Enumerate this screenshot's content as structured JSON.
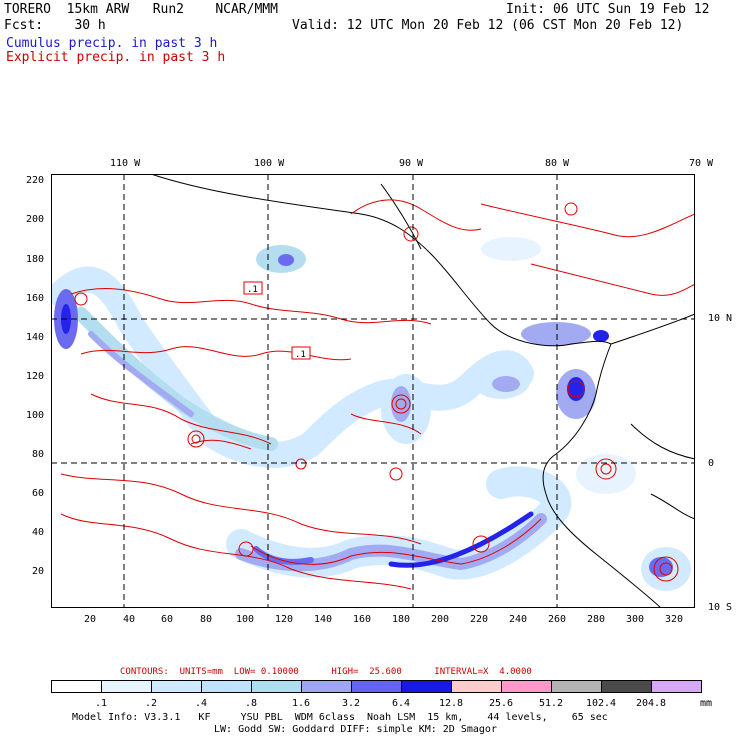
{
  "header": {
    "line1_left": "TORERO  15km ARW   Run2    NCAR/MMM",
    "line1_right": "Init: 06 UTC Sun 19 Feb 12",
    "line2_left": "Fcst:    30 h",
    "line2_right": "Valid: 12 UTC Mon 20 Feb 12 (06 CST Mon 20 Feb 12)",
    "line3": "Cumulus precip. in past 3 h",
    "line4": "Explicit precip. in past 3 h",
    "line3_color": "#1a1acc",
    "line4_color": "#cc0000"
  },
  "map": {
    "lon_labels": [
      "110 W",
      "100 W",
      "90 W",
      "80 W",
      "70 W"
    ],
    "lat_labels": [
      "10 N",
      "0",
      "10 S"
    ],
    "y_ticks": [
      "220",
      "200",
      "180",
      "160",
      "140",
      "120",
      "100",
      "80",
      "60",
      "40",
      "20"
    ],
    "x_ticks": [
      "20",
      "40",
      "60",
      "80",
      "100",
      "120",
      "140",
      "160",
      "180",
      "200",
      "220",
      "240",
      "260",
      "280",
      "300",
      "320"
    ],
    "box_labels": [
      ".1",
      ".1"
    ],
    "colors": {
      "land_line": "#000000",
      "explicit_contour": "#e00000",
      "grid": "#000000"
    }
  },
  "contours_line": "CONTOURS:  UNITS=mm  LOW= 0.10000      HIGH=  25.600      INTERVAL=X  4.0000",
  "colorbar": {
    "ticks": [
      ".1",
      ".2",
      ".4",
      ".8",
      "1.6",
      "3.2",
      "6.4",
      "12.8",
      "25.6",
      "51.2",
      "102.4",
      "204.8"
    ],
    "unit": "mm",
    "colors": [
      "#ffffff",
      "#e6f4ff",
      "#cfe9ff",
      "#bfe2ff",
      "#b0dcf0",
      "#9ea6f2",
      "#6464f0",
      "#1818e8",
      "#ffcccc",
      "#ff99cc",
      "#b3b3b3",
      "#4a4a4a",
      "#d8a8f8"
    ]
  },
  "footer": {
    "line1": "Model Info: V3.3.1   KF     YSU PBL  WDM 6class  Noah LSM  15 km,    44 levels,    65 sec",
    "line2": "LW: Godd SW: Goddard DIFF: simple KM: 2D Smagor"
  }
}
